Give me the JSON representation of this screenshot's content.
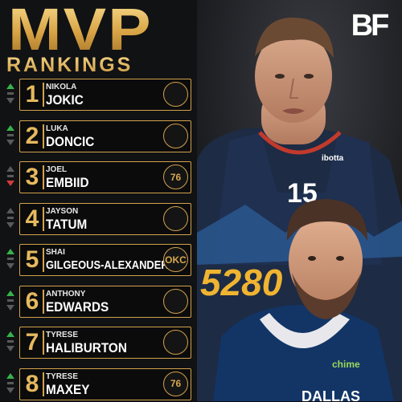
{
  "title": {
    "line1": "MVP",
    "line2": "RANKINGS"
  },
  "brand": {
    "logo_text": "BF"
  },
  "colors": {
    "gold": "#d2a24c",
    "up": "#36b24a",
    "down": "#d23b3b",
    "neutral": "#5a5a5a"
  },
  "rankings": [
    {
      "rank": "1",
      "first": "NIKOLA",
      "last": "JOKIC",
      "team_icon": "nuggets-logo",
      "trend": "up"
    },
    {
      "rank": "2",
      "first": "LUKA",
      "last": "DONCIC",
      "team_icon": "mavericks-logo",
      "trend": "up"
    },
    {
      "rank": "3",
      "first": "JOEL",
      "last": "EMBIID",
      "team_icon": "76ers-logo",
      "trend": "down",
      "logo_text": "76"
    },
    {
      "rank": "4",
      "first": "JAYSON",
      "last": "TATUM",
      "team_icon": "celtics-logo",
      "trend": "neutral"
    },
    {
      "rank": "5",
      "first": "SHAI",
      "last": "GILGEOUS-ALEXANDER",
      "team_icon": "thunder-logo",
      "trend": "up",
      "logo_text": "OKC"
    },
    {
      "rank": "6",
      "first": "ANTHONY",
      "last": "EDWARDS",
      "team_icon": "timberwolves-logo",
      "trend": "up"
    },
    {
      "rank": "7",
      "first": "TYRESE",
      "last": "HALIBURTON",
      "team_icon": "pacers-logo",
      "trend": "up"
    },
    {
      "rank": "8",
      "first": "TYRESE",
      "last": "MAXEY",
      "team_icon": "76ers-logo",
      "trend": "up",
      "logo_text": "76"
    }
  ],
  "photo": {
    "jersey_top_brand": "ibotta",
    "jersey_top_number": "15",
    "jersey_top_text": "5280",
    "jersey_bottom_brand": "chime",
    "jersey_bottom_text": "DALLAS"
  }
}
